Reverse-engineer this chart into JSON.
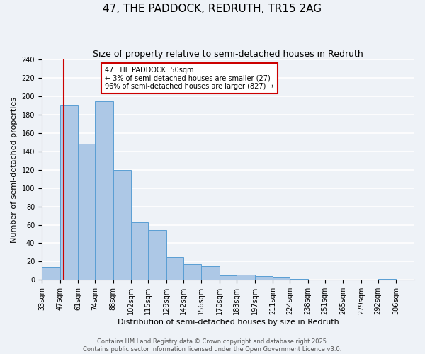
{
  "title": "47, THE PADDOCK, REDRUTH, TR15 2AG",
  "subtitle": "Size of property relative to semi-detached houses in Redruth",
  "xlabel": "Distribution of semi-detached houses by size in Redruth",
  "ylabel": "Number of semi-detached properties",
  "bin_labels": [
    "33sqm",
    "47sqm",
    "61sqm",
    "74sqm",
    "88sqm",
    "102sqm",
    "115sqm",
    "129sqm",
    "142sqm",
    "156sqm",
    "170sqm",
    "183sqm",
    "197sqm",
    "211sqm",
    "224sqm",
    "238sqm",
    "251sqm",
    "265sqm",
    "279sqm",
    "292sqm",
    "306sqm"
  ],
  "bin_edges": [
    33,
    47,
    61,
    74,
    88,
    102,
    115,
    129,
    142,
    156,
    170,
    183,
    197,
    211,
    224,
    238,
    251,
    265,
    279,
    292,
    306
  ],
  "bar_heights": [
    14,
    190,
    148,
    195,
    120,
    63,
    54,
    25,
    17,
    15,
    5,
    6,
    4,
    3,
    1,
    0,
    0,
    0,
    0,
    1
  ],
  "bar_color": "#adc8e6",
  "bar_edge_color": "#5a9fd4",
  "property_value": 50,
  "property_line_color": "#cc0000",
  "annotation_line1": "47 THE PADDOCK: 50sqm",
  "annotation_line2": "← 3% of semi-detached houses are smaller (27)",
  "annotation_line3": "96% of semi-detached houses are larger (827) →",
  "annotation_box_color": "#cc0000",
  "ylim": [
    0,
    240
  ],
  "yticks": [
    0,
    20,
    40,
    60,
    80,
    100,
    120,
    140,
    160,
    180,
    200,
    220,
    240
  ],
  "footer_line1": "Contains HM Land Registry data © Crown copyright and database right 2025.",
  "footer_line2": "Contains public sector information licensed under the Open Government Licence v3.0.",
  "background_color": "#eef2f7",
  "grid_color": "#ffffff",
  "title_fontsize": 11,
  "subtitle_fontsize": 9,
  "axis_label_fontsize": 8,
  "tick_fontsize": 7,
  "annotation_fontsize": 7,
  "footer_fontsize": 6
}
